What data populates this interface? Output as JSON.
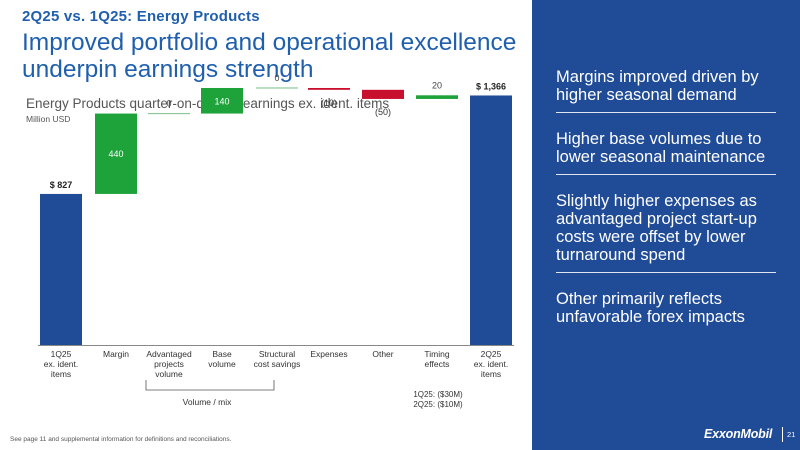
{
  "header": {
    "kicker": "2Q25 vs. 1Q25: Energy Products",
    "headline": "Improved portfolio and operational excellence underpin earnings strength"
  },
  "chart_data": {
    "type": "bar",
    "subtype": "waterfall",
    "title": "Energy Products quarter-on-quarter earnings ex. ident. items",
    "ylabel": "Million USD",
    "categories": [
      "1Q25\nex. ident.\nitems",
      "Margin",
      "Advantaged\nprojects\nvolume",
      "Base\nvolume",
      "Structural\ncost savings",
      "Expenses",
      "Other",
      "Timing\neffects",
      "2Q25\nex. ident.\nitems"
    ],
    "kinds": [
      "total",
      "delta",
      "delta",
      "delta",
      "delta",
      "delta",
      "delta",
      "delta",
      "total"
    ],
    "values": [
      827,
      440,
      0,
      140,
      0,
      -10,
      -50,
      20,
      1366
    ],
    "data_labels": [
      "$ 827",
      "440",
      "0",
      "140",
      "0",
      "(10)",
      "(50)",
      "20",
      "$ 1,366"
    ],
    "colors": {
      "total": "#1f4b97",
      "increase": "#1ea23a",
      "decrease": "#c8102e",
      "zero": "#8cc99a"
    },
    "ylim": [
      0,
      1500
    ],
    "grid": false,
    "group_label": "Volume / mix",
    "timing_note": "1Q25: ($30M)\n2Q25: ($10M)"
  },
  "sidebar": {
    "bullets": [
      "Margins improved driven by higher seasonal demand",
      "Higher base volumes due to lower seasonal maintenance",
      "Slightly higher expenses as advantaged project start-up costs were offset by lower turnaround spend",
      "Other primarily reflects unfavorable forex impacts"
    ]
  },
  "footer": {
    "footnote": "See page 11 and supplemental information for definitions and reconciliations.",
    "logo": "ExxonMobil",
    "page": "21"
  }
}
